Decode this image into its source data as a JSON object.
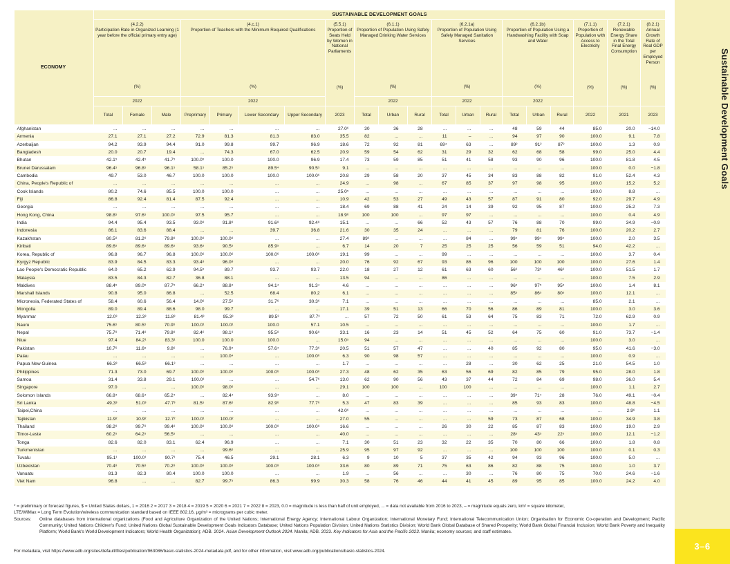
{
  "banner": "SUSTAINABLE DEVELOPMENT GOALS",
  "economy_header": "ECONOMY",
  "groups": [
    {
      "code": "(4.2.2)",
      "title": "Participation Rate in Organized Learning (1 year before the official primary entry age)",
      "unit": "(%)",
      "year": "2022",
      "cols": [
        "Total",
        "Female",
        "Male"
      ]
    },
    {
      "code": "(4.c.1)",
      "title": "Proportion of Teachers with the Minimum Required Qualifications",
      "unit": "(%)",
      "year": "2022",
      "cols": [
        "Preprimary",
        "Primary",
        "Lower Secondary",
        "Upper Secondary"
      ]
    },
    {
      "code": "(5.5.1)",
      "title": "Proportion of Seats Held by Women in National Parliaments",
      "unit": "(%)",
      "year": "",
      "cols": [
        "2023"
      ]
    },
    {
      "code": "(6.1.1)",
      "title": "Proportion of Population Using Safely Managed Drinking Water Services",
      "unit": "(%)",
      "year": "2022",
      "cols": [
        "Total",
        "Urban",
        "Rural"
      ]
    },
    {
      "code": "(6.2.1a)",
      "title": "Proportion of Population Using Safely Managed Sanitation Services",
      "unit": "(%)",
      "year": "2022",
      "cols": [
        "Total",
        "Urban",
        "Rural"
      ]
    },
    {
      "code": "(6.2.1b)",
      "title": "Proportion of Population Using a Handwashing Facility with Soap and Water",
      "unit": "(%)",
      "year": "2022",
      "cols": [
        "Total",
        "Urban",
        "Rural"
      ]
    },
    {
      "code": "(7.1.1)",
      "title": "Proportion of Population with Access to Electricity",
      "unit": "(%)",
      "year": "",
      "cols": [
        "2022"
      ]
    },
    {
      "code": "(7.2.1)",
      "title": "Renewable Energy Share in the Total Final Energy Consumption",
      "unit": "(%)",
      "year": "",
      "cols": [
        "2021"
      ]
    },
    {
      "code": "(8.2.1)",
      "title": "Annual Growth Rate of Real GDP per Employed Person",
      "unit": "(%)",
      "year": "",
      "cols": [
        "2023"
      ]
    }
  ],
  "rows": [
    [
      "Afghanistan",
      "...",
      "...",
      "...",
      "...",
      "...",
      "...",
      "...",
      "27.0⁶",
      "30",
      "36",
      "28",
      "...",
      "...",
      "...",
      "48",
      "59",
      "44",
      "85.0",
      "20.0",
      "−14.0"
    ],
    [
      "Armenia",
      "27.1",
      "27.1",
      "27.2",
      "72.9",
      "81.3",
      "81.3",
      "83.0",
      "35.5",
      "82",
      "...",
      "...",
      "11",
      "–",
      "...",
      "94",
      "97",
      "90",
      "100.0",
      "9.1",
      "7.8"
    ],
    [
      "Azerbaijan",
      "94.2",
      "93.9",
      "94.4",
      "91.0",
      "99.8",
      "99.7",
      "96.9",
      "18.6",
      "72",
      "92",
      "81",
      "69⁴",
      "63",
      "...",
      "89²",
      "91²",
      "87²",
      "100.0",
      "1.3",
      "0.9"
    ],
    [
      "Bangladesh",
      "20.0",
      "20.7",
      "19.4",
      "...",
      "74.3",
      "67.0",
      "62.5",
      "20.9",
      "59",
      "54",
      "62",
      "31",
      "29",
      "32",
      "62",
      "68",
      "58",
      "99.0",
      "25.0",
      "4.4"
    ],
    [
      "Bhutan",
      "42.1⁵",
      "42.4⁵",
      "41.7⁵",
      "100.0⁵",
      "100.0",
      "100.0",
      "96.9",
      "17.4",
      "73",
      "59",
      "85",
      "51",
      "41",
      "58",
      "93",
      "90",
      "96",
      "100.0",
      "81.8",
      "4.5"
    ],
    [
      "Brunei Darussalam",
      "96.4⁵",
      "96.8⁵",
      "96.1⁵",
      "58.1⁵",
      "85.2⁵",
      "89.5⁴",
      "90.5⁵",
      "9.1",
      "...",
      "...",
      "...",
      "...",
      "...",
      "...",
      "...",
      "...",
      "...",
      "100.0",
      "0.0",
      "−1.8"
    ],
    [
      "Cambodia",
      "49.7",
      "53.0",
      "46.7",
      "100.0",
      "100.0",
      "100.0",
      "100.0⁶",
      "20.8",
      "29",
      "58",
      "20",
      "37",
      "45",
      "34",
      "83",
      "88",
      "82",
      "91.0",
      "52.4",
      "4.3"
    ],
    [
      "China, People's Republic of",
      "...",
      "...",
      "...",
      "...",
      "...",
      "...",
      "...",
      "24.9",
      "...",
      "98",
      "...",
      "67",
      "85",
      "37",
      "97",
      "98",
      "95",
      "100.0",
      "15.2",
      "5.2"
    ],
    [
      "Cook Islands",
      "80.2",
      "74.6",
      "85.5",
      "100.0",
      "100.0",
      "...",
      "...",
      "25.0⁵",
      "...",
      "...",
      "...",
      "...",
      "...",
      "...",
      "...",
      "...",
      "...",
      "100.0",
      "8.8",
      "..."
    ],
    [
      "Fiji",
      "86.8",
      "92.4",
      "81.4",
      "87.5",
      "92.4",
      "...",
      "...",
      "10.9",
      "42",
      "53",
      "27",
      "49",
      "43",
      "57",
      "87",
      "91",
      "80",
      "92.0",
      "29.7",
      "4.9"
    ],
    [
      "Georgia",
      "...",
      "...",
      "...",
      "...",
      "...",
      "...",
      "...",
      "18.4",
      "69",
      "88",
      "41",
      "24",
      "14",
      "39",
      "92",
      "95",
      "87",
      "100.0",
      "25.2",
      "7.3"
    ],
    [
      "Hong Kong, China",
      "98.8⁵",
      "97.6⁵",
      "100.0⁵",
      "97.5",
      "95.7",
      "...",
      "...",
      "18.9⁶",
      "100",
      "100",
      "...",
      "97",
      "97",
      "...",
      "...",
      "...",
      "...",
      "100.0",
      "0.4",
      "4.9"
    ],
    [
      "India",
      "94.4",
      "95.4",
      "93.5",
      "93.0⁸",
      "91.8⁸",
      "91.6⁸",
      "92.4⁸",
      "15.1",
      "...",
      "...",
      "66",
      "52",
      "43",
      "57",
      "76",
      "88",
      "70",
      "99.0",
      "34.9",
      "−0.9"
    ],
    [
      "Indonesia",
      "86.1",
      "83.6",
      "88.4",
      "...",
      "...",
      "39.7",
      "36.8",
      "21.6",
      "30",
      "35",
      "24",
      "...",
      "...",
      "...",
      "79",
      "81",
      "76",
      "100.0",
      "20.2",
      "2.7"
    ],
    [
      "Kazakhstan",
      "80.5⁸",
      "81.2⁸",
      "79.8⁸",
      "100.0⁸",
      "100.0⁸",
      "...",
      "...",
      "27.4",
      "89⁶",
      "...",
      "...",
      "...",
      "84",
      "...",
      "99⁴",
      "99⁴",
      "99⁴",
      "100.0",
      "2.0",
      "3.5"
    ],
    [
      "Kiribati",
      "89.6⁵",
      "89.6⁵",
      "89.6⁵",
      "93.6⁵",
      "90.5⁵",
      "85.9⁵",
      "...",
      "6.7",
      "14",
      "20",
      "7",
      "25",
      "25",
      "25",
      "56",
      "59",
      "51",
      "94.0",
      "42.2",
      "..."
    ],
    [
      "Korea, Republic of",
      "96.8",
      "96.7",
      "96.8",
      "100.0⁶",
      "100.0⁶",
      "100.0⁶",
      "100.0⁶",
      "19.1",
      "99",
      "...",
      "...",
      "99",
      "...",
      "...",
      "...",
      "...",
      "...",
      "100.0",
      "3.7",
      "0.4"
    ],
    [
      "Kyrgyz Republic",
      "83.9",
      "84.5",
      "83.3",
      "93.4⁸",
      "96.0⁸",
      "...",
      "...",
      "20.0",
      "76",
      "92",
      "67",
      "93",
      "86",
      "96",
      "100",
      "100",
      "100",
      "100.0",
      "27.6",
      "1.4"
    ],
    [
      "Lao People's Democratic Republic",
      "64.0",
      "65.2",
      "62.9",
      "94.5⁵",
      "89.7",
      "93.7",
      "93.7",
      "22.0",
      "18",
      "27",
      "12",
      "61",
      "63",
      "60",
      "56⁶",
      "73⁶",
      "46⁶",
      "100.0",
      "51.5",
      "1.7"
    ],
    [
      "Malaysia",
      "83.5",
      "84.3",
      "82.7",
      "36.8",
      "88.1",
      "...",
      "...",
      "13.5",
      "94",
      "...",
      "...",
      "86",
      "...",
      "...",
      "...",
      "...",
      "...",
      "100.0",
      "7.5",
      "2.9"
    ],
    [
      "Maldives",
      "88.4⁵",
      "89.0⁵",
      "87.7⁵",
      "66.2⁴",
      "88.8⁴",
      "94.1⁴",
      "91.3⁴",
      "4.6",
      "...",
      "...",
      "...",
      "...",
      "...",
      "...",
      "96⁵",
      "97⁵",
      "95⁵",
      "100.0",
      "1.4",
      "8.1"
    ],
    [
      "Marshall Islands",
      "90.8",
      "95.0",
      "86.8",
      "...",
      "52.5",
      "68.4",
      "80.2",
      "6.1",
      "...",
      "...",
      "...",
      "...",
      "...",
      "...",
      "85⁵",
      "86⁵",
      "80⁵",
      "100.0",
      "12.1",
      "..."
    ],
    [
      "Micronesia, Federated States of",
      "58.4",
      "60.6",
      "56.4",
      "14.0⁶",
      "27.5⁶",
      "31.7⁶",
      "30.3⁶",
      "7.1",
      "...",
      "...",
      "...",
      "...",
      "...",
      "...",
      "...",
      "...",
      "...",
      "85.0",
      "2.1",
      "..."
    ],
    [
      "Mongolia",
      "89.0",
      "89.4",
      "88.6",
      "98.0",
      "99.7",
      "...",
      "...",
      "17.1",
      "39",
      "51",
      "13",
      "66",
      "70",
      "56",
      "86",
      "89",
      "81",
      "100.0",
      "3.0",
      "3.6"
    ],
    [
      "Myanmar",
      "12.0³",
      "12.3³",
      "11.8³",
      "81.4³",
      "95.3³",
      "89.5³",
      "87.7³",
      "...",
      "57",
      "72",
      "50",
      "61",
      "53",
      "64",
      "75",
      "83",
      "71",
      "72.0",
      "62.9",
      "0.9"
    ],
    [
      "Nauru",
      "75.6⁵",
      "80.5⁵",
      "70.9⁵",
      "100.0¹",
      "100.0¹",
      "100.0",
      "57.1",
      "10.5",
      "...",
      "...",
      "...",
      "...",
      "...",
      "...",
      "...",
      "...",
      "...",
      "100.0",
      "1.7",
      "..."
    ],
    [
      "Nepal",
      "75.7⁸",
      "71.4⁸",
      "79.8⁸",
      "82.4⁶",
      "98.1⁸",
      "95.5⁸",
      "90.6⁸",
      "33.1",
      "16",
      "23",
      "14",
      "51",
      "45",
      "52",
      "64",
      "75",
      "60",
      "91.0",
      "73.7",
      "−1.4"
    ],
    [
      "Niue",
      "97.4",
      "84.2¹",
      "83.3¹",
      "100.0",
      "100.0",
      "100.0",
      "...",
      "15.0⁵",
      "94",
      "...",
      "...",
      "...",
      "...",
      "...",
      "...",
      "...",
      "...",
      "100.0",
      "3.0",
      "..."
    ],
    [
      "Pakistan",
      "10.7⁶",
      "11.6⁵",
      "9.8⁶",
      "...",
      "76.9⁴",
      "57.6⁴",
      "77.3⁶",
      "20.5",
      "51",
      "57",
      "47",
      "...",
      "...",
      "40",
      "85",
      "92",
      "80",
      "95.0",
      "41.6",
      "−3.0"
    ],
    [
      "Palau",
      "...",
      "...",
      "...",
      "...",
      "100.0⁴",
      "...",
      "100.0⁶",
      "6.3",
      "90",
      "98",
      "57",
      "...",
      "...",
      "...",
      "...",
      "...",
      "...",
      "100.0",
      "0.9",
      "..."
    ],
    [
      "Papua New Guinea",
      "66.3³",
      "66.5³",
      "66.1³",
      "...",
      "...",
      "...",
      "...",
      "1.7",
      "...",
      "...",
      "...",
      "...",
      "28",
      "...",
      "30",
      "62",
      "25",
      "21.0",
      "54.5",
      "1.0"
    ],
    [
      "Philippines",
      "71.3",
      "73.0",
      "69.7",
      "100.0⁶",
      "100.0⁶",
      "100.0⁶",
      "100.0⁶",
      "27.3",
      "48",
      "62",
      "35",
      "63",
      "56",
      "69",
      "82",
      "85",
      "79",
      "95.0",
      "28.0",
      "1.8"
    ],
    [
      "Samoa",
      "31.4",
      "33.8",
      "29.1",
      "100.0¹",
      "...",
      "...",
      "54.7⁶",
      "13.0",
      "62",
      "90",
      "56",
      "43",
      "37",
      "44",
      "72",
      "84",
      "69",
      "98.0",
      "36.0",
      "5.4"
    ],
    [
      "Singapore",
      "97.0",
      "...",
      "...",
      "100.0⁶",
      "98.0⁶",
      "...",
      "...",
      "29.1",
      "100",
      "100",
      "...",
      "100",
      "100",
      "...",
      "...",
      "...",
      "...",
      "100.0",
      "1.1",
      "2.7"
    ],
    [
      "Solomon Islands",
      "66.8⁴",
      "68.6⁴",
      "65.2⁴",
      "...",
      "82.4⁴",
      "93.9⁴",
      "...",
      "8.0",
      "...",
      "...",
      "...",
      "...",
      "...",
      "...",
      "39⁴",
      "71⁴",
      "28",
      "76.0",
      "49.1",
      "−0.4"
    ],
    [
      "Sri Lanka",
      "49.3³",
      "51.0³",
      "47.7³",
      "81.5⁵",
      "87.6⁶",
      "82.9⁶",
      "77.7⁶",
      "5.3",
      "47",
      "83",
      "39",
      "...",
      "...",
      "...",
      "85",
      "93",
      "83",
      "100.0",
      "48.8",
      "−4.5"
    ],
    [
      "Taipei,China",
      "...",
      "...",
      "...",
      "...",
      "...",
      "...",
      "...",
      "42.0⁶",
      "...",
      "...",
      "...",
      "...",
      "...",
      "...",
      "...",
      "...",
      "...",
      "...",
      "2.9⁶",
      "1.1"
    ],
    [
      "Tajikistan",
      "11.9²",
      "10.9²",
      "12.7²",
      "100.0¹",
      "100.0²",
      "...",
      "...",
      "27.0",
      "55",
      "...",
      "...",
      "...",
      "...",
      "59",
      "73",
      "87",
      "68",
      "100.0",
      "34.9",
      "3.8"
    ],
    [
      "Thailand",
      "98.2⁸",
      "99.7⁸",
      "99.4⁸",
      "100.0⁸",
      "100.0⁸",
      "100.0⁸",
      "100.0⁸",
      "16.6",
      "...",
      "...",
      "...",
      "26",
      "30",
      "22",
      "85",
      "87",
      "83",
      "100.0",
      "19.0",
      "2.9"
    ],
    [
      "Timor-Leste",
      "60.2⁵",
      "64.2⁵",
      "56.5⁵",
      "...",
      "...",
      "...",
      "...",
      "40.0",
      "...",
      "...",
      "...",
      "...",
      "...",
      "...",
      "28⁵",
      "43⁵",
      "22⁵",
      "100.0",
      "12.1",
      "−1.2"
    ],
    [
      "Tonga",
      "82.6",
      "82.0",
      "83.1",
      "62.4",
      "96.9",
      "...",
      "...",
      "7.1",
      "30",
      "51",
      "23",
      "32",
      "22",
      "35",
      "70",
      "80",
      "66",
      "100.0",
      "1.8",
      "0.8"
    ],
    [
      "Turkmenistan",
      "...",
      "...",
      "...",
      "...",
      "99.6⁶",
      "...",
      "...",
      "25.9",
      "95",
      "97",
      "92",
      "...",
      "...",
      "...",
      "100",
      "100",
      "100",
      "100.0",
      "0.1",
      "0.3"
    ],
    [
      "Tuvalu",
      "95.1¹",
      "100.0¹",
      "90.7¹",
      "75.4",
      "46.5",
      "29.1",
      "28.1",
      "6.3",
      "9",
      "10",
      "5",
      "37",
      "35",
      "42",
      "94",
      "93",
      "96",
      "100.0",
      "5.0",
      "..."
    ],
    [
      "Uzbekistan",
      "70.4⁸",
      "70.5⁸",
      "70.2⁸",
      "100.0⁸",
      "100.0⁸",
      "100.0⁸",
      "100.0⁸",
      "33.6",
      "80",
      "89",
      "71",
      "75",
      "63",
      "86",
      "82",
      "88",
      "75",
      "100.0",
      "1.0",
      "3.7"
    ],
    [
      "Vanuatu",
      "81.3",
      "82.3",
      "80.4",
      "100.0",
      "100.0",
      "...",
      "...",
      "1.9",
      "...",
      "56",
      "...",
      "...",
      "30",
      "...",
      "76",
      "80",
      "75",
      "70.0",
      "24.6",
      "−1.6"
    ],
    [
      "Viet Nam",
      "96.8",
      "...",
      "...",
      "82.7",
      "99.7⁵",
      "86.3",
      "99.9",
      "30.3",
      "58",
      "76",
      "46",
      "44",
      "41",
      "45",
      "89",
      "95",
      "85",
      "100.0",
      "24.2",
      "4.0"
    ]
  ],
  "footnotes": {
    "line1": "* = preliminary or forecast figures, $ = United States dollars, 1 = 2016   2 = 2017   3 = 2018   4 = 2019   5 = 2020   6 = 2021   7 = 2022   8 = 2023, 0.0 = magnitude is less than half of unit employed, ... = data not available from 2016 to 2023, – = magnitude equals zero, km² = square kilometer,",
    "line2": "LTE/WiMax = Long Term Evolution/wireless communication standard based on IEEE 802.16, µg/m³ = micrograms per cubic meter."
  },
  "sources_label": "Sources:",
  "sources_segments": [
    {
      "text": "Online databases from international organizations (Food and Agriculture Organization of the United Nations; International Energy Agency; International Labour Organization; International Monetary Fund; International Telecommunication Union; Organisation for Economic Co-operation and Development; Pacific Community; United Nations Children's Fund; United Nations Global Sustainable Development Goals Indicators Database; United Nations Population Division; United Nations Statistics Division; World Bank Global Database of Shared Prosperity; World Bank Global Financial Inclusion; World Bank Poverty and Inequality Platform; World Bank's World Development Indicators; World Health Organization); ADB. 2024. ",
      "italic": false
    },
    {
      "text": "Asian Development Outlook 2024.",
      "italic": true
    },
    {
      "text": " Manila; ADB. 2023. ",
      "italic": false
    },
    {
      "text": "Key Indicators for Asia and the Pacific 2023.",
      "italic": true
    },
    {
      "text": " Manila; economy sources; and staff estimates.",
      "italic": false
    }
  ],
  "metadata_line": "For metadata, visit https://www.adb.org/sites/default/files/publication/963086/basic-statistics-2024-metadata.pdf, and for other information, visit www.adb.org/publications/basic-statistics-2024.",
  "sidebar": {
    "title": "Sustainable Development Goals",
    "tab": "3–6"
  },
  "colors": {
    "header_yellow": "#f6f1c5",
    "stripe_yellow": "#fcf9de",
    "sidebar_yellow": "#f6f0bd",
    "tab_yellow": "#fbe41e"
  }
}
